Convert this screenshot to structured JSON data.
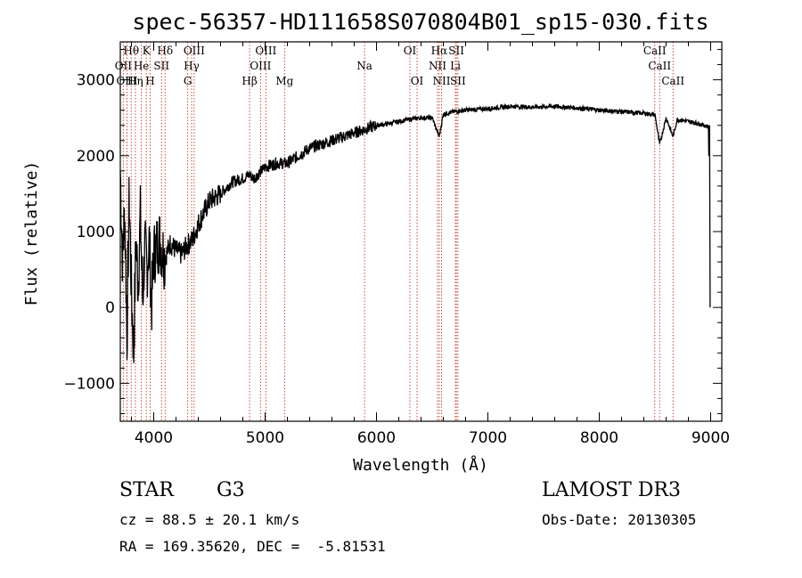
{
  "chart_data": {
    "type": "line",
    "title": "spec-56357-HD111658S070804B01_sp15-030.fits",
    "xlabel": "Wavelength (Å)",
    "ylabel": "Flux (relative)",
    "xlim": [
      3700,
      9100
    ],
    "ylim": [
      -1500,
      3500
    ],
    "xticks": [
      4000,
      5000,
      6000,
      7000,
      8000,
      9000
    ],
    "yticks": [
      -1000,
      0,
      1000,
      2000,
      3000
    ],
    "series": [
      {
        "name": "spectrum",
        "x": [
          3700,
          3720,
          3740,
          3760,
          3780,
          3800,
          3820,
          3840,
          3860,
          3880,
          3900,
          3920,
          3940,
          3960,
          3980,
          4000,
          4050,
          4100,
          4150,
          4200,
          4250,
          4300,
          4350,
          4400,
          4450,
          4500,
          4550,
          4600,
          4700,
          4800,
          4860,
          4900,
          5000,
          5100,
          5200,
          5300,
          5400,
          5500,
          5600,
          5700,
          5800,
          5900,
          6000,
          6100,
          6200,
          6300,
          6400,
          6500,
          6563,
          6600,
          6700,
          6800,
          7000,
          7200,
          7400,
          7600,
          7800,
          8000,
          8200,
          8400,
          8500,
          8542,
          8600,
          8662,
          8700,
          8800,
          8900,
          8980,
          9000
        ],
        "y": [
          1800,
          600,
          1300,
          -400,
          1500,
          200,
          -600,
          900,
          300,
          1200,
          100,
          800,
          500,
          900,
          0,
          700,
          900,
          650,
          850,
          750,
          700,
          820,
          900,
          1100,
          1250,
          1400,
          1450,
          1500,
          1650,
          1700,
          1750,
          1700,
          1850,
          1900,
          1900,
          2000,
          2100,
          2150,
          2200,
          2250,
          2300,
          2350,
          2400,
          2420,
          2450,
          2480,
          2500,
          2500,
          2250,
          2550,
          2580,
          2600,
          2620,
          2650,
          2640,
          2650,
          2630,
          2600,
          2580,
          2560,
          2540,
          2150,
          2500,
          2250,
          2480,
          2450,
          2420,
          2380,
          0
        ]
      }
    ],
    "line_labels": [
      {
        "text": "Hθ",
        "wl": 3798,
        "row": 0
      },
      {
        "text": "K",
        "wl": 3934,
        "row": 0
      },
      {
        "text": "Hδ",
        "wl": 4102,
        "row": 0
      },
      {
        "text": "OIII",
        "wl": 4363,
        "row": 0
      },
      {
        "text": "OIII",
        "wl": 5007,
        "row": 0
      },
      {
        "text": "OI",
        "wl": 6300,
        "row": 0
      },
      {
        "text": "Hα",
        "wl": 6563,
        "row": 0
      },
      {
        "text": "SII",
        "wl": 6717,
        "row": 0
      },
      {
        "text": "CaII",
        "wl": 8498,
        "row": 0
      },
      {
        "text": "OII",
        "wl": 3727,
        "row": 1
      },
      {
        "text": "He",
        "wl": 3889,
        "row": 1
      },
      {
        "text": "SII",
        "wl": 4070,
        "row": 1
      },
      {
        "text": "Hγ",
        "wl": 4340,
        "row": 1
      },
      {
        "text": "OIII",
        "wl": 4959,
        "row": 1
      },
      {
        "text": "Na",
        "wl": 5893,
        "row": 1
      },
      {
        "text": "NII",
        "wl": 6548,
        "row": 1
      },
      {
        "text": "Li",
        "wl": 6708,
        "row": 1
      },
      {
        "text": "CaII",
        "wl": 8542,
        "row": 1
      },
      {
        "text": "OIII",
        "wl": 3760,
        "row": 2
      },
      {
        "text": "Hη",
        "wl": 3835,
        "row": 2
      },
      {
        "text": "H",
        "wl": 3968,
        "row": 2
      },
      {
        "text": "G",
        "wl": 4305,
        "row": 2
      },
      {
        "text": "Hβ",
        "wl": 4861,
        "row": 2
      },
      {
        "text": "Mg",
        "wl": 5175,
        "row": 2
      },
      {
        "text": "OI",
        "wl": 6364,
        "row": 2
      },
      {
        "text": "NII",
        "wl": 6584,
        "row": 2
      },
      {
        "text": "SII",
        "wl": 6731,
        "row": 2
      },
      {
        "text": "CaII",
        "wl": 8662,
        "row": 2
      }
    ],
    "line_marks": [
      3727,
      3760,
      3798,
      3835,
      3889,
      3934,
      3968,
      4070,
      4102,
      4305,
      4340,
      4363,
      4861,
      4959,
      5007,
      5175,
      5893,
      6300,
      6364,
      6548,
      6563,
      6584,
      6708,
      6717,
      6731,
      8498,
      8542,
      8662
    ]
  },
  "info": {
    "class": "STAR",
    "subclass": "G3",
    "survey": "LAMOST DR3",
    "cz": "cz = 88.5 ± 20.1 km/s",
    "obs_date": "Obs-Date: 20130305",
    "coords": "RA = 169.35620, DEC =  -5.81531"
  },
  "colors": {
    "line_marker": "#c0392b",
    "spectrum": "#000000"
  }
}
